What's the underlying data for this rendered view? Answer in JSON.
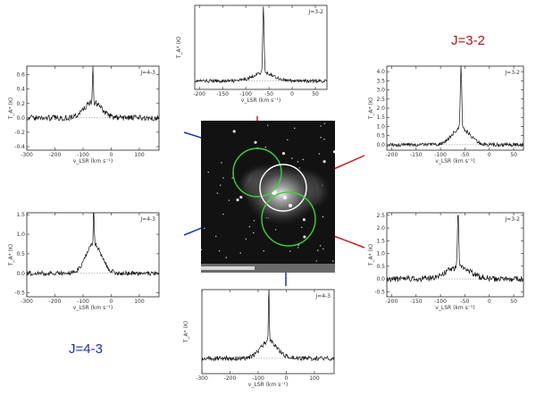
{
  "headers": {
    "j32": {
      "text": "J=3-2",
      "color": "#b01616"
    },
    "j43": {
      "text": "J=4-3",
      "color": "#1c2fa8"
    }
  },
  "colors": {
    "j32": "#c81a1a",
    "j43": "#1c34b8",
    "ring_green": "#3cd33c",
    "ring_white": "#ffffff"
  },
  "panels": [
    {
      "id": "top",
      "transition": "J=3-2",
      "xticks": [
        -200,
        -150,
        -100,
        -50,
        0,
        50
      ],
      "xlim": [
        -210,
        75
      ],
      "yticks": [],
      "ylim": [
        -0.5,
        4.5
      ],
      "peak_v": -62,
      "peak_h": 4.0,
      "wing_h": 0.5,
      "wing_w": 22,
      "noise": 0.1,
      "xlabel": "v_LSR (km s⁻¹)",
      "ylabel": "T_A* (K)"
    },
    {
      "id": "left-top",
      "transition": "J=4-3",
      "xticks": [
        -300,
        -200,
        -100,
        0,
        100
      ],
      "xlim": [
        -300,
        170
      ],
      "yticks": [
        -0.4,
        -0.2,
        0.0,
        0.2,
        0.4,
        0.6
      ],
      "ylim": [
        -0.45,
        0.72
      ],
      "peak_v": -65,
      "peak_h": 0.55,
      "wing_h": 0.22,
      "wing_w": 30,
      "noise": 0.04,
      "xlabel": "v_LSR (km s⁻¹)",
      "ylabel": "T_A* (K)"
    },
    {
      "id": "right-top",
      "transition": "J=3-2",
      "xticks": [
        -200,
        -150,
        -100,
        -50,
        0,
        50
      ],
      "xlim": [
        -210,
        70
      ],
      "yticks": [
        0.0,
        0.5,
        1.0,
        1.5,
        2.0,
        2.5,
        3.0,
        3.5,
        4.0
      ],
      "ylim": [
        -0.3,
        4.3
      ],
      "peak_v": -58,
      "peak_h": 3.5,
      "wing_h": 0.9,
      "wing_w": 18,
      "noise": 0.1,
      "xlabel": "v_LSR (km s⁻¹)",
      "ylabel": "T_A* (K)"
    },
    {
      "id": "left-bottom",
      "transition": "J=4-3",
      "xticks": [
        -300,
        -200,
        -100,
        0,
        100
      ],
      "xlim": [
        -300,
        170
      ],
      "yticks": [
        -0.5,
        0.0,
        0.5,
        1.0,
        1.5
      ],
      "ylim": [
        -0.6,
        1.55
      ],
      "peak_v": -62,
      "peak_h": 1.35,
      "wing_h": 0.75,
      "wing_w": 28,
      "noise": 0.06,
      "xlabel": "v_LSR (km s⁻¹)",
      "ylabel": "T_A* (K)"
    },
    {
      "id": "right-bottom",
      "transition": "J=3-2",
      "xticks": [
        -200,
        -150,
        -100,
        -50,
        0,
        50
      ],
      "xlim": [
        -210,
        70
      ],
      "yticks": [
        -0.5,
        0.0,
        0.5,
        1.0,
        1.5,
        2.0,
        2.5
      ],
      "ylim": [
        -0.7,
        2.6
      ],
      "peak_v": -64,
      "peak_h": 2.2,
      "wing_h": 0.45,
      "wing_w": 25,
      "noise": 0.12,
      "xlabel": "v_LSR (km s⁻¹)",
      "ylabel": "T_A* (K)"
    },
    {
      "id": "bottom",
      "transition": "J=4-3",
      "xticks": [
        -300,
        -200,
        -100,
        0,
        100
      ],
      "xlim": [
        -300,
        170
      ],
      "yticks": [],
      "ylim": [
        -0.4,
        1.8
      ],
      "peak_v": -62,
      "peak_h": 1.6,
      "wing_h": 0.45,
      "wing_w": 30,
      "noise": 0.06,
      "xlabel": "v_LSR (km s⁻¹)",
      "ylabel": "T_A* (K)"
    }
  ]
}
